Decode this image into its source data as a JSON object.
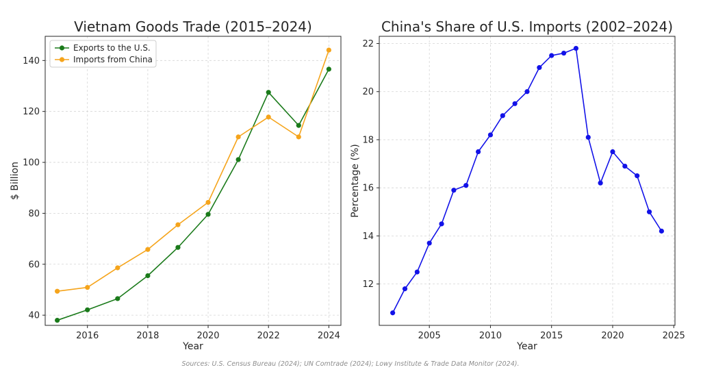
{
  "chart_data": [
    {
      "type": "line",
      "title": "Vietnam Goods Trade (2015–2024)",
      "xlabel": "Year",
      "ylabel": "$ Billion",
      "x": [
        2015,
        2016,
        2017,
        2018,
        2019,
        2020,
        2021,
        2022,
        2023,
        2024
      ],
      "xlim": [
        2014.6,
        2024.4
      ],
      "ylim": [
        36,
        149.5
      ],
      "xticks": [
        2016,
        2018,
        2020,
        2022,
        2024
      ],
      "yticks": [
        40,
        60,
        80,
        100,
        120,
        140
      ],
      "grid": true,
      "legend_position": "top-left",
      "series": [
        {
          "name": "Exports to the U.S.",
          "color": "#1a7a1a",
          "values": [
            38.0,
            42.1,
            46.5,
            55.5,
            66.6,
            79.6,
            101.1,
            127.5,
            114.5,
            136.6
          ]
        },
        {
          "name": "Imports from China",
          "color": "#f5a41b",
          "values": [
            49.4,
            50.9,
            58.6,
            65.8,
            75.5,
            84.3,
            110.0,
            117.8,
            110.0,
            144.1
          ]
        }
      ]
    },
    {
      "type": "line",
      "title": "China's Share of U.S. Imports (2002–2024)",
      "xlabel": "Year",
      "ylabel": "Percentage (%)",
      "x": [
        2002,
        2003,
        2004,
        2005,
        2006,
        2007,
        2008,
        2009,
        2010,
        2011,
        2012,
        2013,
        2014,
        2015,
        2016,
        2017,
        2018,
        2019,
        2020,
        2021,
        2022,
        2023,
        2024
      ],
      "xlim": [
        2000.9,
        2025.1
      ],
      "ylim": [
        10.28,
        22.3
      ],
      "xticks": [
        2005,
        2010,
        2015,
        2020,
        2025
      ],
      "yticks": [
        12,
        14,
        16,
        18,
        20,
        22
      ],
      "grid": true,
      "series": [
        {
          "color": "#1212e8",
          "values": [
            10.8,
            11.8,
            12.5,
            13.7,
            14.5,
            15.9,
            16.1,
            17.5,
            18.2,
            19.0,
            19.5,
            20.0,
            21.0,
            21.5,
            21.6,
            21.8,
            18.1,
            16.2,
            17.5,
            16.9,
            16.5,
            15.0,
            14.2
          ]
        }
      ]
    }
  ],
  "source_note": "Sources: U.S. Census Bureau (2024); UN Comtrade (2024); Lowy Institute & Trade Data Monitor (2024)."
}
